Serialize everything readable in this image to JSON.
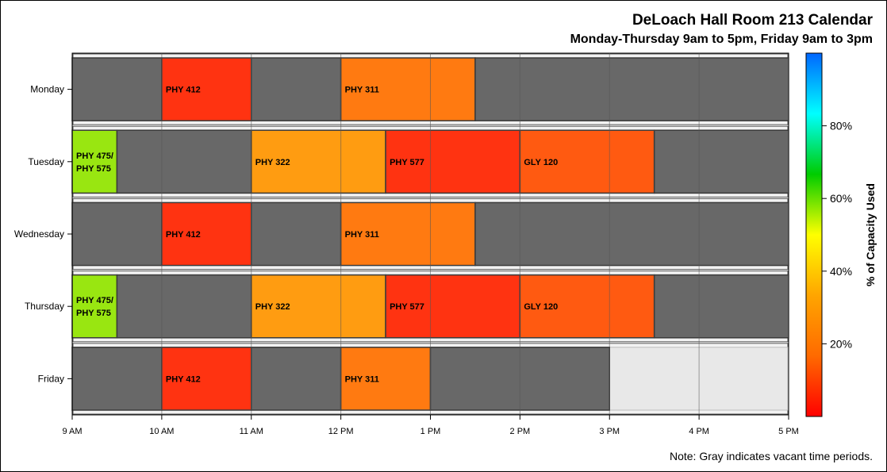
{
  "chart_data": {
    "type": "gantt",
    "title": "DeLoach Hall Room 213 Calendar",
    "subtitle": "Monday-Thursday 9am to 5pm, Friday 9am to 3pm",
    "note": "Note: Gray indicates vacant time periods.",
    "x_ticks": [
      "9 AM",
      "10 AM",
      "11 AM",
      "12 PM",
      "1 PM",
      "2 PM",
      "3 PM",
      "4 PM",
      "5 PM"
    ],
    "x_range_hours": [
      9,
      17
    ],
    "days": [
      "Monday",
      "Tuesday",
      "Wednesday",
      "Thursday",
      "Friday"
    ],
    "colorbar": {
      "label": "% of Capacity Used",
      "ticks": [
        "20%",
        "40%",
        "60%",
        "80%"
      ],
      "tick_values": [
        20,
        40,
        60,
        80
      ],
      "range": [
        0,
        100
      ],
      "colors": [
        "#ff0000",
        "#ff6a00",
        "#ffa500",
        "#ffff00",
        "#00cc00",
        "#00ffff",
        "#0066ff"
      ]
    },
    "vacant_color": "#686868",
    "closed_color": "#e8e8e8",
    "rows": [
      {
        "day": "Monday",
        "open_until": 17,
        "blocks": [
          {
            "start": 9,
            "end": 10,
            "label": "",
            "vacant": true
          },
          {
            "start": 10,
            "end": 11,
            "label": "PHY 412",
            "color": "#ff3311"
          },
          {
            "start": 11,
            "end": 12,
            "label": "",
            "vacant": true
          },
          {
            "start": 12,
            "end": 13.5,
            "label": "PHY 311",
            "color": "#ff7a11"
          },
          {
            "start": 13.5,
            "end": 17,
            "label": "",
            "vacant": true
          }
        ]
      },
      {
        "day": "Tuesday",
        "open_until": 17,
        "blocks": [
          {
            "start": 9,
            "end": 9.5,
            "label": "PHY 475/\nPHY 575",
            "color": "#99e611"
          },
          {
            "start": 9.5,
            "end": 11,
            "label": "",
            "vacant": true
          },
          {
            "start": 11,
            "end": 12.5,
            "label": "PHY 322",
            "color": "#ff9c11"
          },
          {
            "start": 12.5,
            "end": 14,
            "label": "PHY 577",
            "color": "#ff3311"
          },
          {
            "start": 14,
            "end": 15.5,
            "label": "GLY 120",
            "color": "#ff5a11"
          },
          {
            "start": 15.5,
            "end": 17,
            "label": "",
            "vacant": true
          }
        ]
      },
      {
        "day": "Wednesday",
        "open_until": 17,
        "blocks": [
          {
            "start": 9,
            "end": 10,
            "label": "",
            "vacant": true
          },
          {
            "start": 10,
            "end": 11,
            "label": "PHY 412",
            "color": "#ff3311"
          },
          {
            "start": 11,
            "end": 12,
            "label": "",
            "vacant": true
          },
          {
            "start": 12,
            "end": 13.5,
            "label": "PHY 311",
            "color": "#ff7a11"
          },
          {
            "start": 13.5,
            "end": 17,
            "label": "",
            "vacant": true
          }
        ]
      },
      {
        "day": "Thursday",
        "open_until": 17,
        "blocks": [
          {
            "start": 9,
            "end": 9.5,
            "label": "PHY 475/\nPHY 575",
            "color": "#99e611"
          },
          {
            "start": 9.5,
            "end": 11,
            "label": "",
            "vacant": true
          },
          {
            "start": 11,
            "end": 12.5,
            "label": "PHY 322",
            "color": "#ff9c11"
          },
          {
            "start": 12.5,
            "end": 14,
            "label": "PHY 577",
            "color": "#ff3311"
          },
          {
            "start": 14,
            "end": 15.5,
            "label": "GLY 120",
            "color": "#ff5a11"
          },
          {
            "start": 15.5,
            "end": 17,
            "label": "",
            "vacant": true
          }
        ]
      },
      {
        "day": "Friday",
        "open_until": 15,
        "blocks": [
          {
            "start": 9,
            "end": 10,
            "label": "",
            "vacant": true
          },
          {
            "start": 10,
            "end": 11,
            "label": "PHY 412",
            "color": "#ff3311"
          },
          {
            "start": 11,
            "end": 12,
            "label": "",
            "vacant": true
          },
          {
            "start": 12,
            "end": 13,
            "label": "PHY 311",
            "color": "#ff7a11"
          },
          {
            "start": 13,
            "end": 15,
            "label": "",
            "vacant": true
          }
        ]
      }
    ]
  }
}
